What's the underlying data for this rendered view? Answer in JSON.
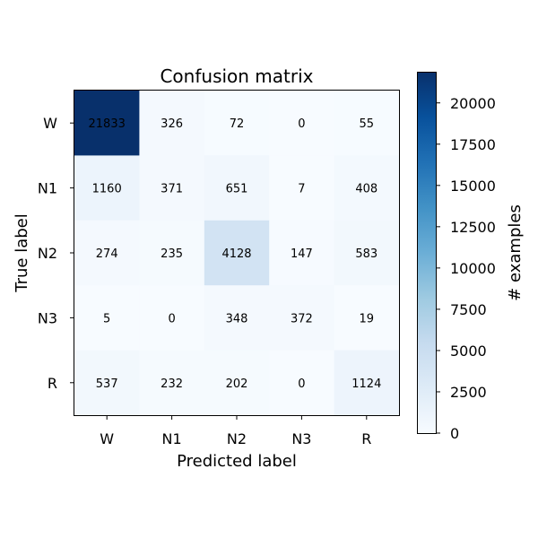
{
  "chart_data": {
    "type": "heatmap",
    "title": "Confusion matrix",
    "xlabel": "Predicted label",
    "ylabel": "True label",
    "x_categories": [
      "W",
      "N1",
      "N2",
      "N3",
      "R"
    ],
    "y_categories": [
      "W",
      "N1",
      "N2",
      "N3",
      "R"
    ],
    "values": [
      [
        21833,
        326,
        72,
        0,
        55
      ],
      [
        1160,
        371,
        651,
        7,
        408
      ],
      [
        274,
        235,
        4128,
        147,
        583
      ],
      [
        5,
        0,
        348,
        372,
        19
      ],
      [
        537,
        232,
        202,
        0,
        1124
      ]
    ],
    "colorbar": {
      "label": "# examples",
      "ticks": [
        "0",
        "2500",
        "5000",
        "7500",
        "10000",
        "12500",
        "15000",
        "17500",
        "20000"
      ],
      "range": [
        0,
        21833
      ]
    },
    "colormap": "Blues",
    "colors": {
      "low": "#f7fbff",
      "high": "#08306b"
    }
  }
}
